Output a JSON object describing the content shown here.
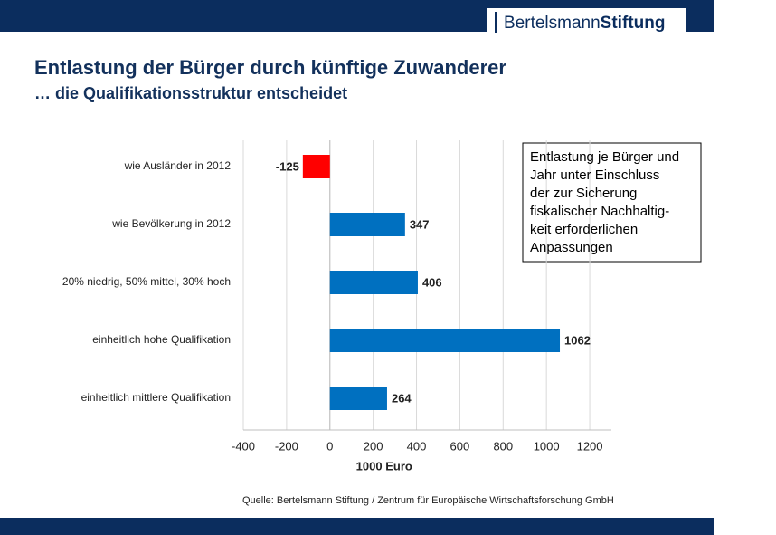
{
  "chart_data": {
    "type": "hbar",
    "logo": [
      "Bertelsmann",
      "Stiftung"
    ],
    "title": "Entlastung der Bürger durch künftige Zuwanderer",
    "subtitle": "… die Qualifikationsstruktur entscheidet",
    "categories": [
      "wie Ausländer in 2012",
      "wie Bevölkerung in 2012",
      "20% niedrig, 50% mittel, 30% hoch",
      "einheitlich hohe Qualifikation",
      "einheitlich mittlere Qualifikation"
    ],
    "values": [
      -125,
      347,
      406,
      1062,
      264
    ],
    "colors": [
      "#ff0000",
      "#0070c0",
      "#0070c0",
      "#0070c0",
      "#0070c0"
    ],
    "xlim": [
      -400,
      1300
    ],
    "xticks": [
      -400,
      -200,
      0,
      200,
      400,
      600,
      800,
      1000,
      1200
    ],
    "xlabel": "1000 Euro",
    "grid": true,
    "annotation": [
      "Entlastung je Bürger und",
      "Jahr unter Einschluss",
      "der zur Sicherung",
      "fiskalischer Nachhaltig-",
      "keit erforderlichen",
      "Anpassungen"
    ],
    "source": "Quelle: Bertelsmann Stiftung / Zentrum für Europäische Wirtschaftsforschung GmbH"
  }
}
